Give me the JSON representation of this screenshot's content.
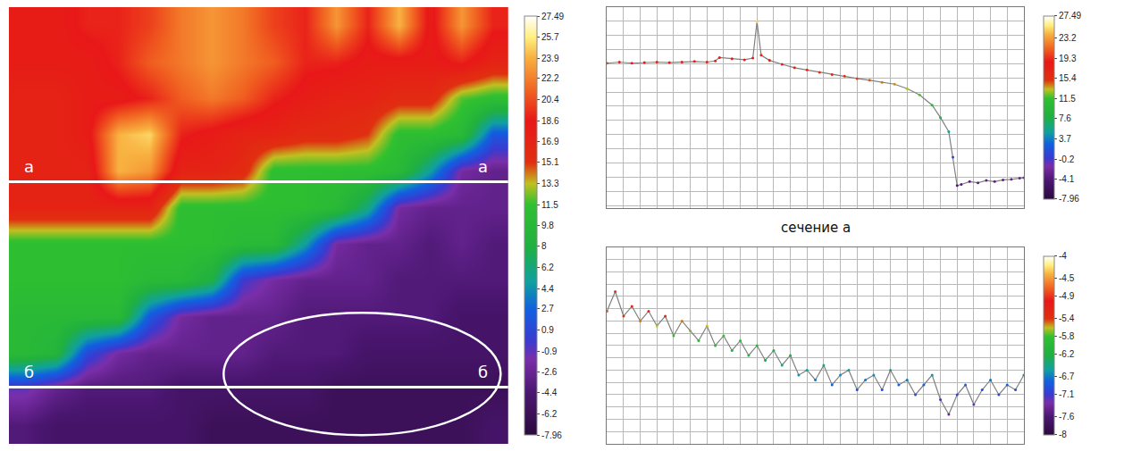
{
  "chart_data": [
    {
      "type": "heatmap",
      "z": [
        [
          18,
          18,
          19,
          19,
          20,
          22,
          23,
          22,
          20,
          19,
          23,
          19,
          24,
          18,
          23,
          19
        ],
        [
          18,
          18,
          18,
          19,
          21,
          22,
          23,
          22,
          21,
          19,
          19,
          18,
          18,
          18,
          19,
          17
        ],
        [
          17,
          17,
          18,
          18,
          19,
          21,
          22,
          21,
          19,
          18,
          17,
          17,
          16,
          16,
          12,
          11
        ],
        [
          17,
          17,
          18,
          24,
          25,
          19,
          18,
          17,
          17,
          16,
          16,
          15,
          11,
          11,
          10,
          2
        ],
        [
          17,
          17,
          17,
          24,
          23,
          17,
          17,
          16,
          11,
          11,
          11,
          11,
          10,
          5,
          -2,
          -3
        ],
        [
          17,
          17,
          17,
          17,
          17,
          11,
          11,
          11,
          11,
          11,
          10,
          6,
          -2,
          -3,
          -3,
          -3
        ],
        [
          11,
          11,
          11,
          11,
          11,
          11,
          11,
          10,
          10,
          5,
          -2,
          -3,
          -3,
          -4,
          -3,
          -4
        ],
        [
          11,
          11,
          11,
          11,
          10,
          10,
          8,
          0,
          -2,
          -3,
          -3,
          -3,
          -4,
          -4,
          -4,
          -4
        ],
        [
          10,
          10,
          10,
          10,
          2,
          -2,
          -3,
          -3,
          -3,
          -4,
          -4,
          -4,
          -4,
          -4,
          -5,
          -5
        ],
        [
          10,
          9,
          1,
          -2,
          -3,
          -3,
          -3,
          -3,
          -4,
          -4,
          -4,
          -5,
          -5,
          -5,
          -5,
          -5
        ],
        [
          -1,
          -3,
          -4,
          -4,
          -4,
          -5,
          -5,
          -5,
          -5,
          -5,
          -6,
          -6,
          -6,
          -6,
          -6,
          -6
        ],
        [
          -4,
          -5,
          -5,
          -5,
          -5,
          -5,
          -6,
          -6,
          -6,
          -6,
          -6,
          -6,
          -6,
          -6,
          -6,
          -5
        ]
      ],
      "zlim": [
        -7.96,
        27.49
      ],
      "colorbar_ticks": [
        27.49,
        25.7,
        23.9,
        22.2,
        20.4,
        18.6,
        16.9,
        15.1,
        13.3,
        11.5,
        9.8,
        8,
        6.2,
        4.4,
        2.7,
        0.9,
        -0.9,
        -2.6,
        -4.4,
        -6.2,
        -7.96
      ],
      "sections": [
        "а",
        "б"
      ],
      "tick_labels": false
    },
    {
      "type": "line",
      "title": "сечение а",
      "x": [
        0,
        3,
        6,
        9,
        12,
        15,
        18,
        21,
        24,
        26,
        27,
        30,
        33,
        35,
        36,
        37,
        39,
        42,
        45,
        48,
        51,
        54,
        57,
        60,
        63,
        66,
        69,
        72,
        75,
        78,
        80,
        82,
        83,
        84,
        85,
        87,
        89,
        91,
        93,
        95,
        97,
        99,
        100
      ],
      "values": [
        17.6,
        17.8,
        17.6,
        17.7,
        17.8,
        17.7,
        17.8,
        17.9,
        17.8,
        18.0,
        18.6,
        18.4,
        18.2,
        18.5,
        24.9,
        19.0,
        18.1,
        17.4,
        16.8,
        16.4,
        16.0,
        15.6,
        15.3,
        14.9,
        14.6,
        14.2,
        13.9,
        13.1,
        12.0,
        10.2,
        8.0,
        5.5,
        1.0,
        -4.0,
        -3.8,
        -3.3,
        -3.5,
        -3.1,
        -3.3,
        -3.0,
        -2.9,
        -2.7,
        -2.6
      ],
      "color": "#808080",
      "xlim": [
        0,
        100
      ],
      "ylim": [
        -7.96,
        27.49
      ],
      "xticks": [
        0,
        4,
        8,
        12,
        16,
        20,
        24,
        28,
        32,
        36,
        40,
        44,
        48,
        52,
        56,
        60,
        64,
        68,
        72,
        76,
        80,
        84,
        88,
        92,
        96,
        100
      ],
      "yticks": [
        -7.5,
        -5,
        -2.5,
        0,
        2.5,
        5,
        7.5,
        10,
        12.5,
        15,
        17.5,
        20,
        22.5,
        25
      ],
      "grid": true,
      "tick_labels": false,
      "colorbar_range": [
        -7.96,
        27.49
      ],
      "colorbar_ticks": [
        27.49,
        23.2,
        19.3,
        15.4,
        11.5,
        7.6,
        3.7,
        -0.2,
        -4.1,
        -7.96
      ]
    },
    {
      "type": "line",
      "x": [
        0,
        2,
        4,
        6,
        8,
        10,
        12,
        14,
        16,
        18,
        20,
        22,
        24,
        26,
        28,
        30,
        32,
        34,
        36,
        38,
        40,
        42,
        44,
        46,
        48,
        50,
        52,
        54,
        56,
        58,
        60,
        62,
        64,
        66,
        68,
        70,
        72,
        74,
        76,
        78,
        80,
        82,
        84,
        86,
        88,
        90,
        92,
        94,
        96,
        98,
        100
      ],
      "values": [
        -5.3,
        -4.9,
        -5.4,
        -5.2,
        -5.5,
        -5.3,
        -5.6,
        -5.4,
        -5.8,
        -5.5,
        -5.7,
        -5.9,
        -5.6,
        -6.0,
        -5.8,
        -6.1,
        -5.9,
        -6.2,
        -6.0,
        -6.3,
        -6.1,
        -6.4,
        -6.2,
        -6.6,
        -6.5,
        -6.7,
        -6.4,
        -6.8,
        -6.6,
        -6.5,
        -6.9,
        -6.7,
        -6.6,
        -6.9,
        -6.5,
        -6.8,
        -6.7,
        -7.0,
        -6.8,
        -6.6,
        -7.1,
        -7.4,
        -7.0,
        -6.8,
        -7.2,
        -6.9,
        -6.7,
        -7.0,
        -6.8,
        -6.9,
        -6.6
      ],
      "color": "#808080",
      "xlim": [
        0,
        100
      ],
      "ylim": [
        -8,
        -4
      ],
      "xticks": [
        0,
        4,
        8,
        12,
        16,
        20,
        24,
        28,
        32,
        36,
        40,
        44,
        48,
        52,
        56,
        60,
        64,
        68,
        72,
        76,
        80,
        84,
        88,
        92,
        96,
        100
      ],
      "yticks": [
        -8,
        -7.75,
        -7.5,
        -7.25,
        -7,
        -6.75,
        -6.5,
        -6.25,
        -6,
        -5.75,
        -5.5,
        -5.25,
        -5,
        -4.75,
        -4.5,
        -4.25,
        -4
      ],
      "grid": true,
      "tick_labels": false,
      "colorbar_range": [
        -8,
        -4
      ],
      "colorbar_ticks": [
        -4,
        -4.5,
        -4.9,
        -5.4,
        -5.8,
        -6.2,
        -6.7,
        -7.1,
        -7.6,
        -8
      ]
    }
  ]
}
